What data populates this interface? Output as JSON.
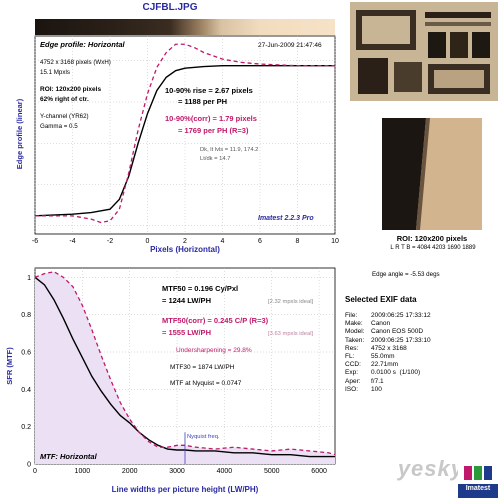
{
  "title": "CJFBL.JPG",
  "edge_plot": {
    "header": "Edge profile: Horizontal",
    "date": "27-Jun-2009 21:47:46",
    "info": [
      "4752 x 3168 pixels (WxH)",
      "15.1 Mpxls"
    ],
    "roi": [
      "ROI: 120x200 pixels",
      "62% right of ctr."
    ],
    "channel": [
      "Y-channel (YR62)",
      "Gamma = 0.5"
    ],
    "rise": [
      "10-90% rise = 2.67 pixels",
      "= 1188 per PH"
    ],
    "rise_corr": [
      "10-90%(corr) = 1.79 pixels",
      "= 1769 per PH   (R=3)"
    ],
    "dk": [
      "Dk, lt lvls = 11.9, 174.2",
      "Lt/dk = 14.7"
    ],
    "badge": "Imatest 2.2.3 Pro",
    "ylabel": "Edge profile (linear)",
    "xlabel": "Pixels (Horizontal)"
  },
  "mtf_plot": {
    "mtf50": [
      "MTF50 = 0.196 Cy/Pxl",
      "= 1244 LW/PH"
    ],
    "mtf50_ideal": "[2.32 mpxls ideal]",
    "mtf50c": [
      "MTF50(corr) = 0.245 C/P   (R=3)",
      "= 1555 LW/PH"
    ],
    "mtf50c_ideal": "[3.63 mpxls ideal]",
    "undersharp": "Undersharpening = 29.8%",
    "mtf30": "MTF30 = 1874 LW/PH",
    "nyq_mtf": "MTF at Nyquist = 0.0747",
    "nyq_label": "Nyquist freq.",
    "header": "MTF: Horizontal",
    "ylabel": "SFR (MTF)",
    "xlabel": "Line widths per picture height (LW/PH)"
  },
  "roi_caption": "ROI: 120x200 pixels",
  "lrtb": "L R T B = 4084 4203  1690 1889",
  "edge_angle": "Edge angle = -5.53 degs",
  "exif_title": "Selected EXIF data",
  "exif": [
    [
      "File:",
      "2009:06:25 17:33:12"
    ],
    [
      "Make:",
      "Canon"
    ],
    [
      "Model:",
      "Canon EOS 500D"
    ],
    [
      "Taken:",
      "2009:06:25 17:33:10"
    ],
    [
      "Res:",
      "4752 x 3168"
    ],
    [
      "FL:",
      "55.0mm"
    ],
    [
      "CCD:",
      "22.71mm"
    ],
    [
      "Exp:",
      "0.0100 s  (1/100)"
    ],
    [
      "Aper:",
      "f/7.1"
    ],
    [
      "ISO:",
      "100"
    ]
  ],
  "watermark": "yesky",
  "logo": "Imatest",
  "colors": {
    "black_curve": "#000000",
    "corr_curve": "#c0186a",
    "text_blue": "#2a2aa0",
    "text_red": "#c0186a",
    "nyquist": "#4040c0"
  },
  "chart_data": [
    {
      "type": "line",
      "title": "Edge profile: Horizontal",
      "xlabel": "Pixels (Horizontal)",
      "ylabel": "Edge profile (linear)",
      "xlim": [
        -6,
        10
      ],
      "xticks": [
        -6,
        -4,
        -2,
        0,
        2,
        4,
        6,
        8,
        10
      ],
      "grid": true,
      "series": [
        {
          "x": [
            -6,
            -4,
            -3,
            -2,
            -1.5,
            -1,
            -0.5,
            0,
            0.5,
            1,
            1.5,
            2,
            3,
            4,
            6,
            8,
            10
          ],
          "y": [
            0.06,
            0.07,
            0.08,
            0.1,
            0.16,
            0.3,
            0.5,
            0.68,
            0.82,
            0.9,
            0.94,
            0.955,
            0.965,
            0.97,
            0.97,
            0.97,
            0.97
          ]
        },
        {
          "x": [
            -6,
            -4,
            -3,
            -2.5,
            -2,
            -1.5,
            -1,
            -0.5,
            0,
            0.5,
            1,
            1.5,
            2,
            2.5,
            3,
            4,
            5,
            6,
            8,
            10
          ],
          "y": [
            0.06,
            0.06,
            0.04,
            0.02,
            0.03,
            0.1,
            0.32,
            0.58,
            0.8,
            0.96,
            1.05,
            1.1,
            1.1,
            1.08,
            1.05,
            1.01,
            0.99,
            0.98,
            0.97,
            0.97
          ]
        }
      ]
    },
    {
      "type": "line",
      "title": "MTF: Horizontal",
      "xlabel": "Line widths per picture height (LW/PH)",
      "ylabel": "SFR (MTF)",
      "xlim": [
        0,
        6336
      ],
      "ylim": [
        0,
        1.05
      ],
      "xticks": [
        0,
        1000,
        2000,
        3000,
        4000,
        5000,
        6000
      ],
      "yticks": [
        0,
        0.2,
        0.4,
        0.6,
        0.8,
        1
      ],
      "grid": true,
      "nyquist_x": 3168,
      "series": [
        {
          "x": [
            0,
            200,
            400,
            600,
            800,
            1000,
            1200,
            1400,
            1600,
            1800,
            2000,
            2200,
            2400,
            2600,
            2800,
            3000,
            3168,
            3400,
            3800,
            4200,
            4600,
            5000,
            5400,
            5800,
            6200,
            6336
          ],
          "y": [
            1.0,
            0.96,
            0.88,
            0.78,
            0.67,
            0.57,
            0.47,
            0.39,
            0.32,
            0.26,
            0.22,
            0.17,
            0.13,
            0.1,
            0.08,
            0.075,
            0.075,
            0.07,
            0.07,
            0.06,
            0.06,
            0.05,
            0.05,
            0.04,
            0.04,
            0.04
          ]
        },
        {
          "x": [
            0,
            200,
            400,
            600,
            800,
            1000,
            1200,
            1400,
            1600,
            1800,
            2000,
            2200,
            2400,
            2600,
            2800,
            3000,
            3168,
            3400,
            3800,
            4200,
            4600,
            5000,
            5400,
            5800,
            6200,
            6336
          ],
          "y": [
            1.0,
            1.02,
            1.03,
            1.0,
            0.95,
            0.85,
            0.72,
            0.58,
            0.45,
            0.33,
            0.24,
            0.17,
            0.12,
            0.09,
            0.09,
            0.1,
            0.1,
            0.09,
            0.08,
            0.09,
            0.08,
            0.07,
            0.08,
            0.07,
            0.06,
            0.05
          ]
        }
      ]
    }
  ]
}
